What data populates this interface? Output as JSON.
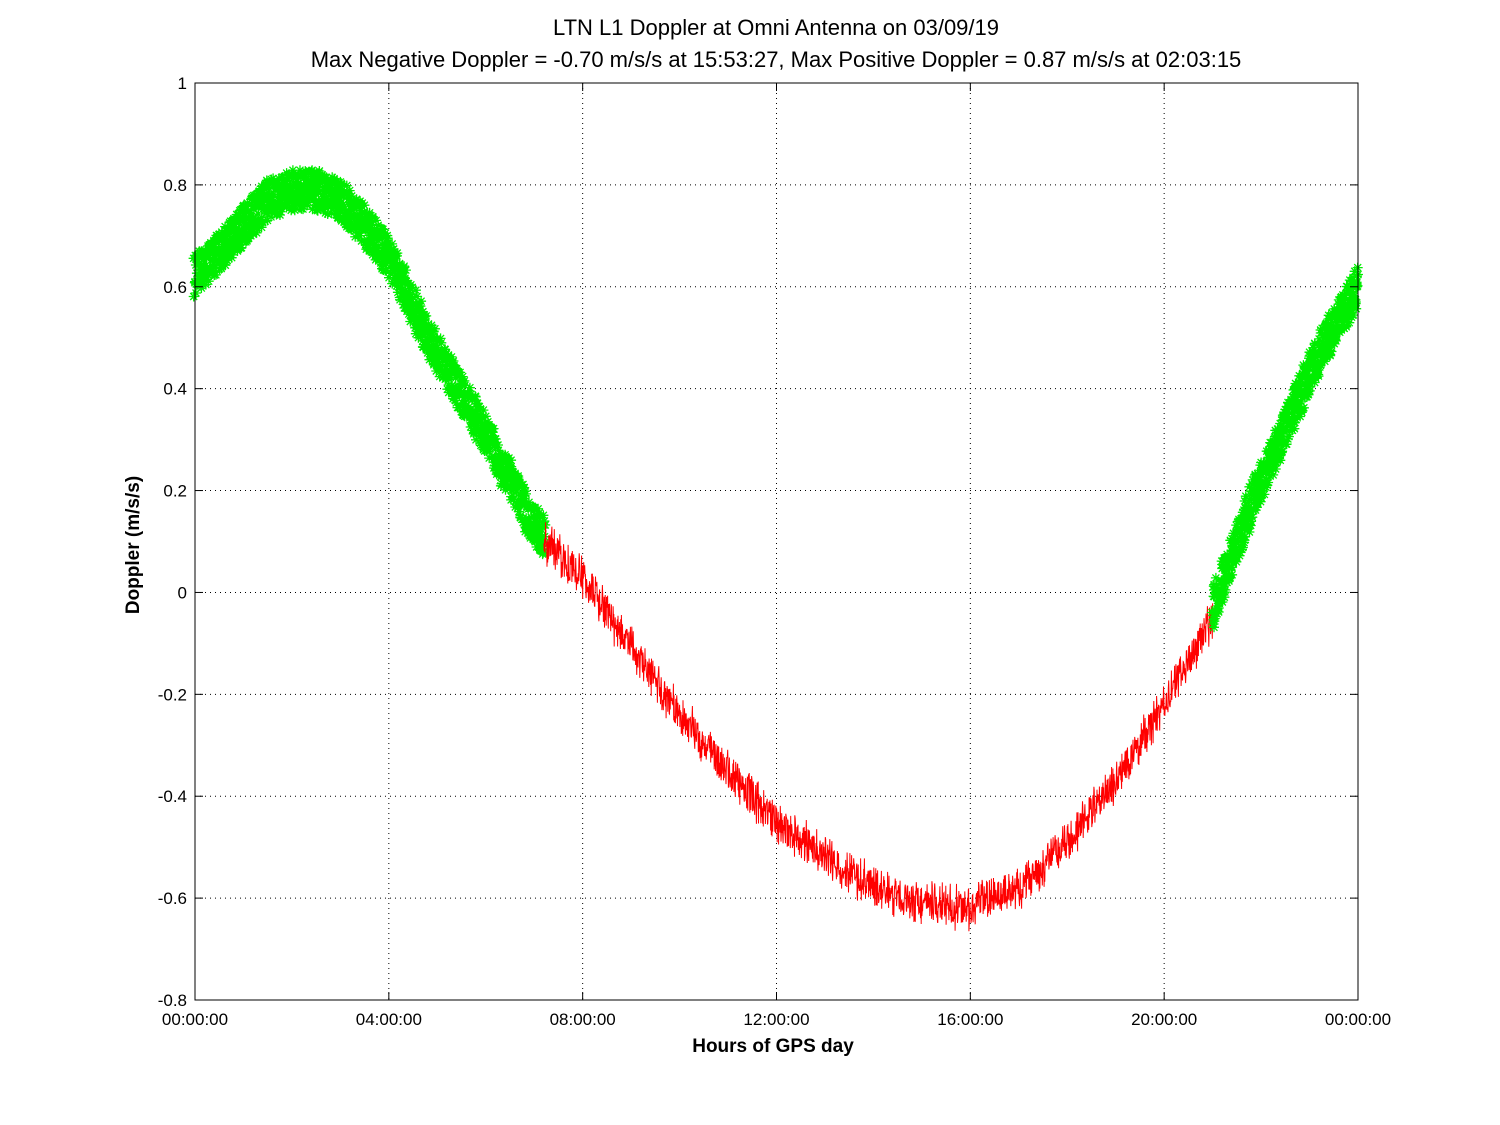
{
  "chart_data": {
    "type": "scatter",
    "title": "LTN  L1 Doppler at Omni Antenna on 03/09/19",
    "subtitle": "Max Negative Doppler = -0.70 m/s/s  at 15:53:27,   Max Positive Doppler = 0.87 m/s/s  at 02:03:15",
    "xlabel": "Hours of GPS day",
    "ylabel": "Doppler (m/s/s)",
    "xlim_hours": [
      0,
      24
    ],
    "ylim": [
      -0.8,
      1
    ],
    "x_ticks": [
      {
        "value": 0,
        "label": "00:00:00"
      },
      {
        "value": 4,
        "label": "04:00:00"
      },
      {
        "value": 8,
        "label": "08:00:00"
      },
      {
        "value": 12,
        "label": "12:00:00"
      },
      {
        "value": 16,
        "label": "16:00:00"
      },
      {
        "value": 20,
        "label": "20:00:00"
      },
      {
        "value": 24,
        "label": "00:00:00"
      }
    ],
    "y_ticks": [
      {
        "value": 1,
        "label": "1"
      },
      {
        "value": 0.8,
        "label": "0.8"
      },
      {
        "value": 0.6,
        "label": "0.6"
      },
      {
        "value": 0.4,
        "label": "0.4"
      },
      {
        "value": 0.2,
        "label": "0.2"
      },
      {
        "value": 0,
        "label": "0"
      },
      {
        "value": -0.2,
        "label": "-0.2"
      },
      {
        "value": -0.4,
        "label": "-0.4"
      },
      {
        "value": -0.6,
        "label": "-0.6"
      },
      {
        "value": -0.8,
        "label": "-0.8"
      }
    ],
    "grid": true,
    "series": [
      {
        "segment": "positive-early",
        "color": "#00ee00",
        "marker": "asterisk",
        "hours": [
          0,
          0.5,
          1,
          1.5,
          2,
          2.5,
          3,
          3.5,
          4,
          4.5,
          5,
          5.5,
          6,
          6.5,
          7,
          7.2
        ],
        "values": [
          0.62,
          0.67,
          0.72,
          0.77,
          0.79,
          0.79,
          0.77,
          0.72,
          0.66,
          0.56,
          0.47,
          0.39,
          0.31,
          0.22,
          0.13,
          0.11
        ]
      },
      {
        "segment": "negative",
        "color": "#ff0000",
        "marker": "line",
        "hours": [
          7.2,
          8,
          9,
          10,
          11,
          12,
          13,
          14,
          15,
          15.9,
          17,
          18,
          19,
          20,
          21
        ],
        "values": [
          0.1,
          0.03,
          -0.11,
          -0.24,
          -0.35,
          -0.45,
          -0.52,
          -0.58,
          -0.61,
          -0.62,
          -0.58,
          -0.49,
          -0.37,
          -0.22,
          -0.05
        ]
      },
      {
        "segment": "positive-late",
        "color": "#00ee00",
        "marker": "asterisk",
        "hours": [
          21,
          21.5,
          22,
          22.5,
          23,
          23.5,
          24
        ],
        "values": [
          -0.03,
          0.1,
          0.22,
          0.32,
          0.43,
          0.52,
          0.6
        ]
      }
    ],
    "noise_amplitude": 0.04
  }
}
